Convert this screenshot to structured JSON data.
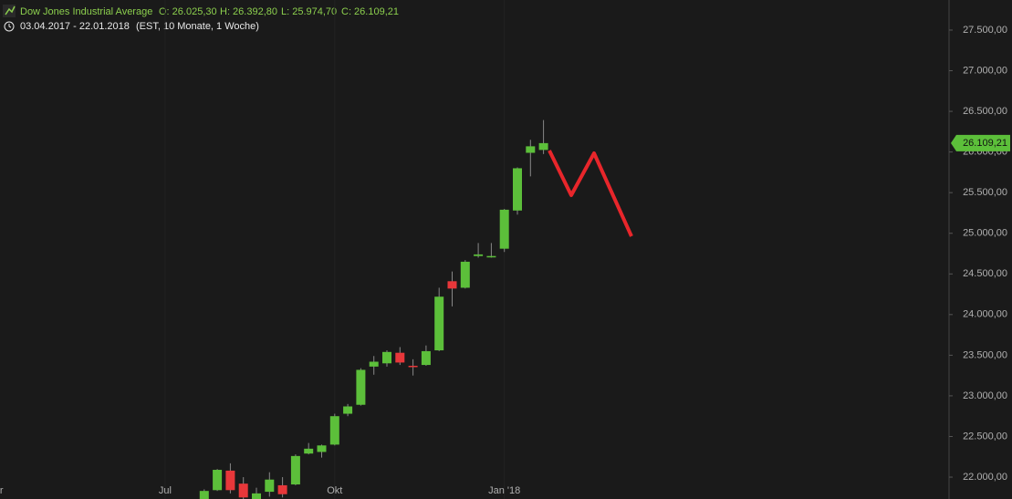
{
  "chart_data": {
    "type": "candlestick",
    "header": {
      "name": "Dow Jones Industrial Average",
      "open": "O: 26.025,30",
      "high": "H: 26.392,80",
      "low": "L: 25.974,70",
      "close": "C: 26.109,21",
      "date_range": "03.04.2017 - 22.01.2018",
      "interval": "(EST, 10 Monate, 1 Woche)"
    },
    "categories": [
      "Apr",
      null,
      null,
      null,
      null,
      null,
      null,
      null,
      null,
      null,
      null,
      null,
      null,
      "Jul",
      null,
      null,
      null,
      null,
      null,
      null,
      null,
      null,
      null,
      null,
      null,
      null,
      "Okt",
      null,
      null,
      null,
      null,
      null,
      null,
      null,
      null,
      null,
      null,
      null,
      null,
      "Jan '18",
      null,
      null,
      null
    ],
    "open": [
      null,
      null,
      null,
      null,
      null,
      null,
      null,
      null,
      null,
      null,
      null,
      null,
      null,
      null,
      null,
      null,
      21650,
      21840,
      22080,
      21920,
      21700,
      21820,
      21900,
      21910,
      22290,
      22310,
      22400,
      22780,
      22890,
      23360,
      23400,
      23530,
      23370,
      23380,
      23560,
      24410,
      24330,
      24720,
      24710,
      24810,
      25280,
      25990,
      26025.3
    ],
    "high": [
      null,
      null,
      null,
      null,
      null,
      null,
      null,
      null,
      null,
      null,
      null,
      null,
      null,
      null,
      null,
      null,
      21850,
      22100,
      22170,
      22000,
      21870,
      22060,
      22000,
      22280,
      22420,
      22400,
      22780,
      22900,
      23340,
      23490,
      23560,
      23600,
      23450,
      23620,
      24330,
      24530,
      24670,
      24880,
      24880,
      25300,
      25810,
      26150,
      26392.8
    ],
    "low": [
      null,
      null,
      null,
      null,
      null,
      null,
      null,
      null,
      null,
      null,
      null,
      null,
      null,
      null,
      null,
      null,
      21600,
      21830,
      21800,
      21700,
      21680,
      21760,
      21750,
      21900,
      22280,
      22240,
      22390,
      22750,
      22880,
      23260,
      23360,
      23380,
      23250,
      23370,
      23550,
      24100,
      24320,
      24700,
      24700,
      24770,
      25230,
      25700,
      25974.7
    ],
    "close": [
      null,
      null,
      null,
      null,
      null,
      null,
      null,
      null,
      null,
      null,
      null,
      null,
      null,
      null,
      null,
      null,
      21830,
      22090,
      21840,
      21750,
      21800,
      21970,
      21790,
      22260,
      22350,
      22390,
      22750,
      22870,
      23320,
      23420,
      23540,
      23410,
      23360,
      23550,
      24220,
      24320,
      24650,
      24740,
      24720,
      25290,
      25800,
      26070,
      26109.21
    ],
    "up_color": "#5cbf3a",
    "down_color": "#e8373a",
    "ylim": [
      21731,
      27870
    ],
    "yticks": [
      {
        "value": 22000,
        "label": "22.000,00"
      },
      {
        "value": 22500,
        "label": "22.500,00"
      },
      {
        "value": 23000,
        "label": "23.000,00"
      },
      {
        "value": 23500,
        "label": "23.500,00"
      },
      {
        "value": 24000,
        "label": "24.000,00"
      },
      {
        "value": 24500,
        "label": "24.500,00"
      },
      {
        "value": 25000,
        "label": "25.000,00"
      },
      {
        "value": 25500,
        "label": "25.500,00"
      },
      {
        "value": 26000,
        "label": "26.000,00"
      },
      {
        "value": 26500,
        "label": "26.500,00"
      },
      {
        "value": 27000,
        "label": "27.000,00"
      },
      {
        "value": 27500,
        "label": "27.500,00"
      }
    ],
    "last_price": {
      "value": 26109.21,
      "label": "26.109,21"
    },
    "grid": false
  }
}
